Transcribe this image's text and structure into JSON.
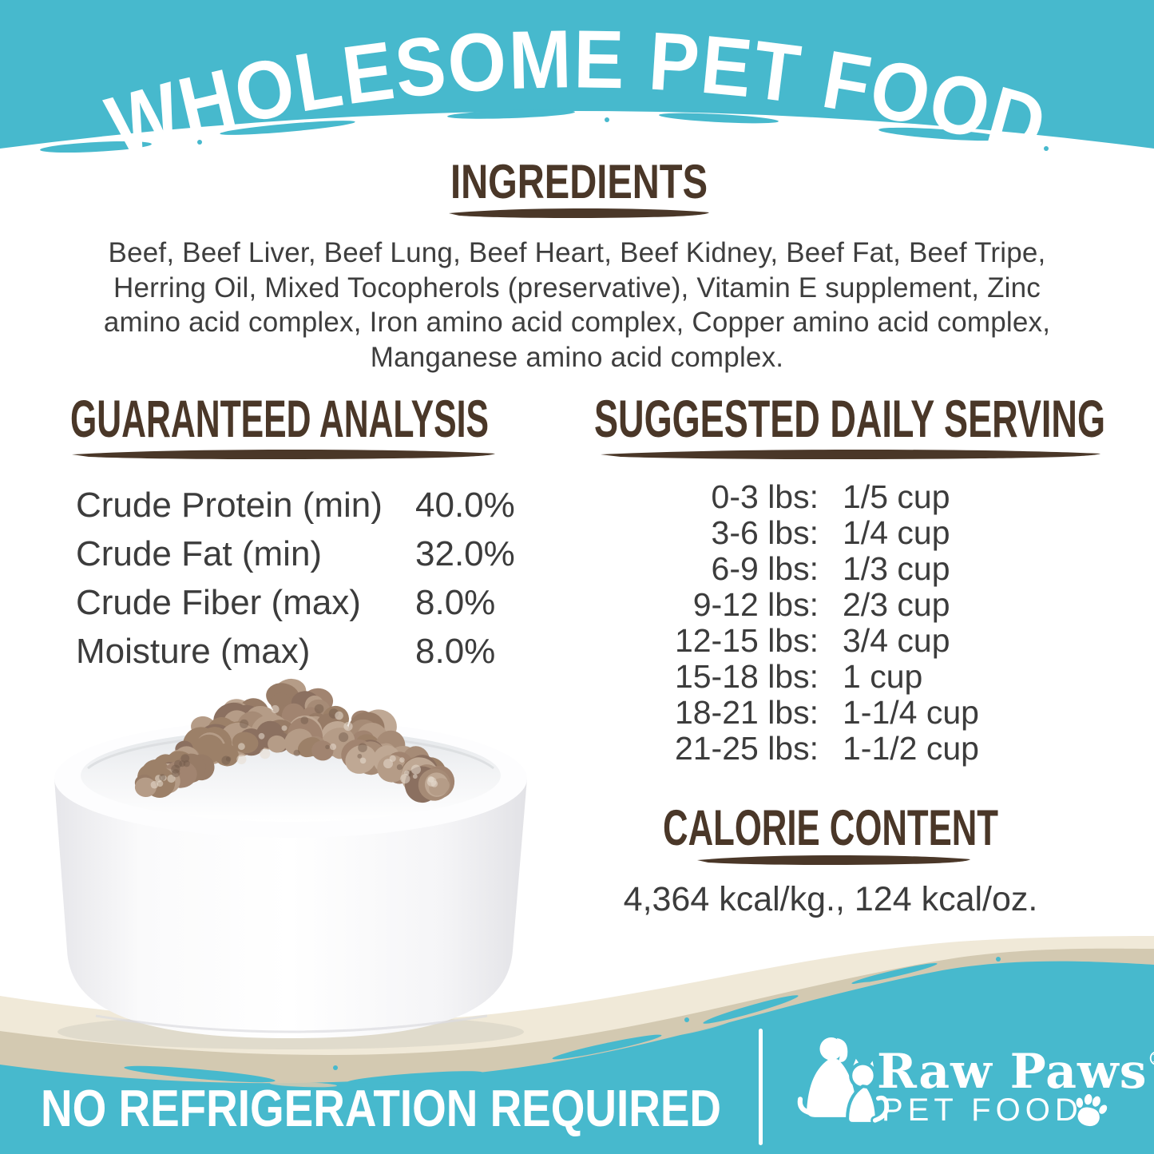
{
  "colors": {
    "teal": "#47b9cd",
    "brown": "#4a3728",
    "cream": "#f0e9d8",
    "tan": "#d3c9b1",
    "body_text": "#3e3e3e",
    "white": "#ffffff"
  },
  "header": {
    "title": "WHOLESOME PET FOOD"
  },
  "ingredients": {
    "heading": "INGREDIENTS",
    "lines": [
      "Beef, Beef Liver, Beef Lung, Beef Heart, Beef Kidney, Beef Fat, Beef Tripe,",
      "Herring Oil, Mixed Tocopherols (preservative), Vitamin E supplement, Zinc",
      "amino acid complex, Iron amino acid complex, Copper amino acid complex,",
      "Manganese amino acid complex."
    ]
  },
  "analysis": {
    "heading": "GUARANTEED ANALYSIS",
    "rows": [
      {
        "label": "Crude Protein (min)",
        "value": "40.0%"
      },
      {
        "label": "Crude Fat (min)",
        "value": "32.0%"
      },
      {
        "label": "Crude Fiber (max)",
        "value": "8.0%"
      },
      {
        "label": "Moisture (max)",
        "value": "8.0%"
      }
    ]
  },
  "serving": {
    "heading": "SUGGESTED DAILY SERVING",
    "rows": [
      {
        "range": "0-3 lbs:",
        "amount": "1/5 cup"
      },
      {
        "range": "3-6 lbs:",
        "amount": "1/4 cup"
      },
      {
        "range": "6-9 lbs:",
        "amount": "1/3 cup"
      },
      {
        "range": "9-12 lbs:",
        "amount": "2/3 cup"
      },
      {
        "range": "12-15 lbs:",
        "amount": "3/4 cup"
      },
      {
        "range": "15-18 lbs:",
        "amount": "1 cup"
      },
      {
        "range": "18-21 lbs:",
        "amount": "1-1/4 cup"
      },
      {
        "range": "21-25 lbs:",
        "amount": "1-1/2 cup"
      }
    ]
  },
  "calories": {
    "heading": "CALORIE CONTENT",
    "value": "4,364 kcal/kg., 124 kcal/oz."
  },
  "footer": {
    "claim": "NO REFRIGERATION REQUIRED",
    "brand": "Raw Paws",
    "registered": "®",
    "brand_line2": "PET FOOD"
  }
}
